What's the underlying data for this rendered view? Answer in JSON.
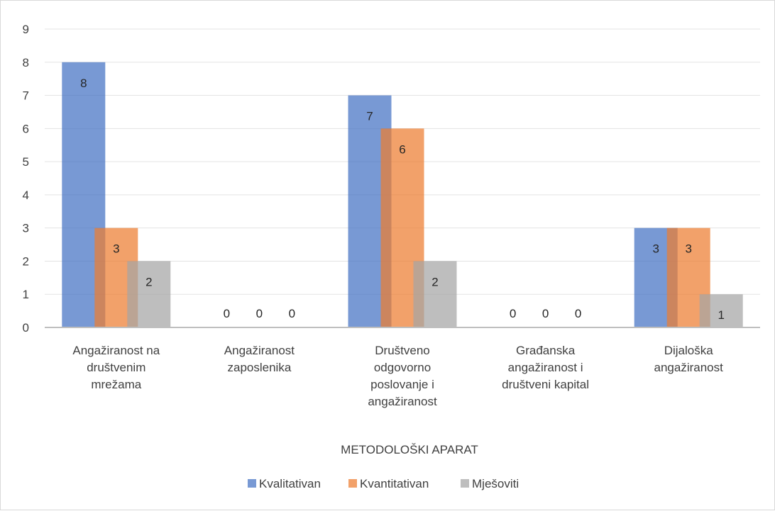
{
  "chart_data": {
    "type": "bar",
    "title": "",
    "xlabel": "METODOLOŠKI APARAT",
    "ylabel": "",
    "ylim": [
      0,
      9
    ],
    "yticks": [
      0,
      1,
      2,
      3,
      4,
      5,
      6,
      7,
      8,
      9
    ],
    "grid": true,
    "legend_position": "bottom",
    "categories": [
      [
        "Angažiranost na",
        "društvenim",
        "mrežama"
      ],
      [
        "Angažiranost",
        "zaposlenika"
      ],
      [
        "Društveno",
        "odgovorno",
        "poslovanje i",
        "angažiranost"
      ],
      [
        "Građanska",
        "angažiranost i",
        "društveni kapital"
      ],
      [
        "Dijaloška",
        "angažiranost"
      ]
    ],
    "series": [
      {
        "name": "Kvalitativan",
        "color": "#4472c4",
        "values": [
          8,
          0,
          7,
          0,
          3
        ]
      },
      {
        "name": "Kvantitativan",
        "color": "#ed7d31",
        "values": [
          3,
          0,
          6,
          0,
          3
        ]
      },
      {
        "name": "Mješoviti",
        "color": "#a5a5a5",
        "values": [
          2,
          0,
          2,
          0,
          1
        ]
      }
    ]
  }
}
